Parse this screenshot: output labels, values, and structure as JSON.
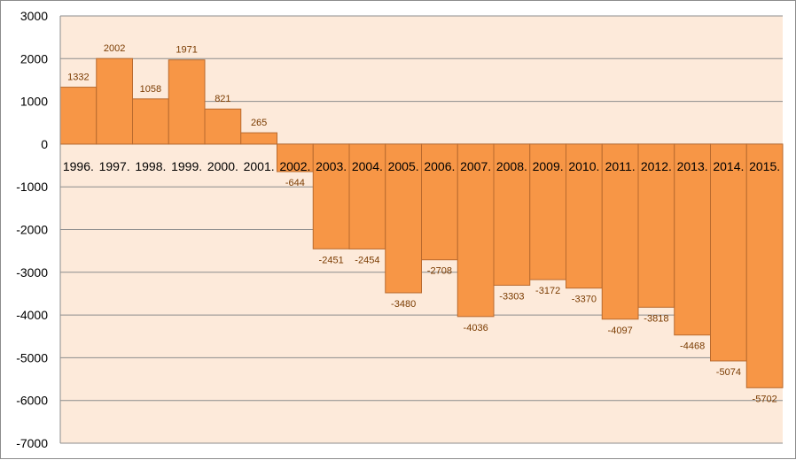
{
  "chart_data": {
    "type": "bar",
    "categories": [
      "1996.",
      "1997.",
      "1998.",
      "1999.",
      "2000.",
      "2001.",
      "2002.",
      "2003.",
      "2004.",
      "2005.",
      "2006.",
      "2007.",
      "2008.",
      "2009.",
      "2010.",
      "2011.",
      "2012.",
      "2013.",
      "2014.",
      "2015."
    ],
    "values": [
      1332,
      2002,
      1058,
      1971,
      821,
      265,
      -644,
      -2451,
      -2454,
      -3480,
      -2708,
      -4036,
      -3303,
      -3172,
      -3370,
      -4097,
      -3818,
      -4468,
      -5074,
      -5702
    ],
    "data_labels": [
      "1332",
      "2002",
      "1058",
      "1971",
      "821",
      "265",
      "-644",
      "-2451",
      "-2454",
      "-3480",
      "-2708",
      "-4036",
      "-3303",
      "-3172",
      "-3370",
      "-4097",
      "-3818",
      "-4468",
      "-5074",
      "-5702"
    ],
    "y_ticks": [
      "3000",
      "2000",
      "1000",
      "0",
      "-1000",
      "-2000",
      "-3000",
      "-4000",
      "-5000",
      "-6000",
      "-7000"
    ],
    "ylim": [
      -7000,
      3000
    ],
    "title": "",
    "xlabel": "",
    "ylabel": "",
    "grid": true,
    "legend": "none",
    "colors": {
      "bar_fill": "#F79646",
      "bar_stroke": "#B96A2E",
      "plot_background": "#FDEADA",
      "gridline": "#8C8C8C",
      "label_color": "#7A3B00"
    }
  }
}
